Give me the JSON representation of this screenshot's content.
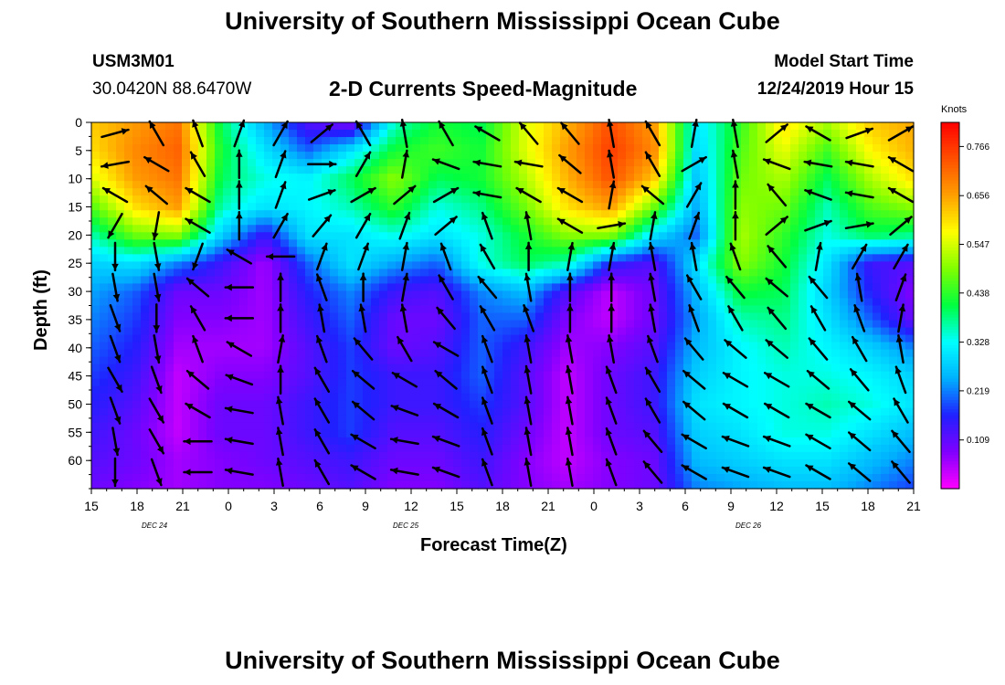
{
  "header": {
    "title": "University of Southern Mississippi Ocean Cube",
    "station_id": "USM3M01",
    "location": "30.0420N 88.6470W",
    "plot_title": "2-D Currents Speed-Magnitude",
    "model_start_label": "Model Start Time",
    "model_start_value": "12/24/2019 Hour 15"
  },
  "footer": {
    "title": "University of Southern Mississippi Ocean Cube"
  },
  "chart_data": {
    "type": "heatmap",
    "title": "2-D Currents Speed-Magnitude",
    "xlabel": "Forecast Time(Z)",
    "ylabel": "Depth (ft)",
    "x_ticks": [
      "15",
      "18",
      "21",
      "0",
      "3",
      "6",
      "9",
      "12",
      "15",
      "18",
      "21",
      "0",
      "3",
      "6",
      "9",
      "12",
      "15",
      "18",
      "21"
    ],
    "date_labels": [
      "DEC 24",
      "DEC 25",
      "DEC 26"
    ],
    "y_ticks": [
      "0",
      "5",
      "10",
      "15",
      "20",
      "25",
      "30",
      "35",
      "40",
      "45",
      "50",
      "55",
      "60"
    ],
    "ylim": [
      0,
      65
    ],
    "y_inverted": true,
    "colorbar": {
      "unit": "Knots",
      "ticks": [
        "0.766",
        "0.656",
        "0.547",
        "0.438",
        "0.328",
        "0.219",
        "0.109"
      ],
      "min": 0.0,
      "max": 0.82,
      "colors": [
        "#ff00ff",
        "#8000ff",
        "#2020ff",
        "#00b0ff",
        "#00ffff",
        "#00ff40",
        "#80ff00",
        "#ffff00",
        "#ffa000",
        "#ff5000",
        "#ff0000"
      ]
    },
    "speed_grid_knots": [
      [
        0.62,
        0.66,
        0.7,
        0.4,
        0.25,
        0.12,
        0.08,
        0.35,
        0.42,
        0.4,
        0.55,
        0.64,
        0.74,
        0.66,
        0.3,
        0.44,
        0.6,
        0.52,
        0.62,
        0.65
      ],
      [
        0.6,
        0.68,
        0.72,
        0.42,
        0.3,
        0.2,
        0.3,
        0.42,
        0.45,
        0.42,
        0.55,
        0.66,
        0.76,
        0.68,
        0.28,
        0.46,
        0.56,
        0.45,
        0.58,
        0.64
      ],
      [
        0.55,
        0.66,
        0.7,
        0.4,
        0.34,
        0.32,
        0.4,
        0.5,
        0.4,
        0.42,
        0.52,
        0.64,
        0.74,
        0.62,
        0.26,
        0.48,
        0.52,
        0.4,
        0.52,
        0.6
      ],
      [
        0.46,
        0.6,
        0.66,
        0.36,
        0.3,
        0.32,
        0.36,
        0.44,
        0.34,
        0.38,
        0.48,
        0.6,
        0.66,
        0.48,
        0.24,
        0.5,
        0.48,
        0.36,
        0.46,
        0.5
      ],
      [
        0.36,
        0.48,
        0.5,
        0.28,
        0.14,
        0.3,
        0.3,
        0.34,
        0.3,
        0.34,
        0.42,
        0.5,
        0.5,
        0.3,
        0.2,
        0.52,
        0.44,
        0.34,
        0.4,
        0.38
      ],
      [
        0.28,
        0.3,
        0.22,
        0.14,
        0.06,
        0.2,
        0.3,
        0.24,
        0.2,
        0.34,
        0.4,
        0.36,
        0.16,
        0.12,
        0.3,
        0.5,
        0.42,
        0.3,
        0.14,
        0.12
      ],
      [
        0.24,
        0.2,
        0.1,
        0.1,
        0.06,
        0.16,
        0.22,
        0.14,
        0.12,
        0.22,
        0.26,
        0.12,
        0.04,
        0.1,
        0.26,
        0.42,
        0.4,
        0.28,
        0.16,
        0.08
      ],
      [
        0.22,
        0.18,
        0.08,
        0.08,
        0.06,
        0.14,
        0.2,
        0.1,
        0.1,
        0.2,
        0.2,
        0.08,
        0.04,
        0.1,
        0.24,
        0.36,
        0.38,
        0.3,
        0.2,
        0.1
      ],
      [
        0.2,
        0.16,
        0.06,
        0.06,
        0.06,
        0.12,
        0.18,
        0.1,
        0.12,
        0.2,
        0.14,
        0.06,
        0.08,
        0.12,
        0.26,
        0.32,
        0.36,
        0.32,
        0.28,
        0.22
      ],
      [
        0.18,
        0.14,
        0.04,
        0.08,
        0.08,
        0.12,
        0.18,
        0.14,
        0.14,
        0.2,
        0.12,
        0.04,
        0.1,
        0.14,
        0.28,
        0.32,
        0.34,
        0.34,
        0.32,
        0.28
      ],
      [
        0.16,
        0.12,
        0.04,
        0.1,
        0.1,
        0.14,
        0.18,
        0.14,
        0.14,
        0.18,
        0.12,
        0.04,
        0.1,
        0.14,
        0.3,
        0.32,
        0.34,
        0.36,
        0.34,
        0.3
      ],
      [
        0.14,
        0.1,
        0.04,
        0.1,
        0.1,
        0.14,
        0.18,
        0.12,
        0.12,
        0.16,
        0.1,
        0.04,
        0.1,
        0.12,
        0.28,
        0.3,
        0.34,
        0.34,
        0.3,
        0.26
      ],
      [
        0.12,
        0.1,
        0.06,
        0.08,
        0.1,
        0.12,
        0.14,
        0.1,
        0.1,
        0.14,
        0.08,
        0.04,
        0.08,
        0.1,
        0.26,
        0.28,
        0.3,
        0.3,
        0.26,
        0.22
      ],
      [
        0.1,
        0.08,
        0.06,
        0.08,
        0.08,
        0.1,
        0.12,
        0.08,
        0.08,
        0.12,
        0.08,
        0.06,
        0.08,
        0.1,
        0.22,
        0.24,
        0.26,
        0.26,
        0.22,
        0.18
      ]
    ],
    "vector_angles_deg": [
      [
        -15,
        -120,
        -110,
        -70,
        -60,
        -40,
        -120,
        -100,
        -120,
        -150,
        -130,
        -130,
        -100,
        -120,
        -80,
        -100,
        -40,
        -150,
        -20,
        -30
      ],
      [
        170,
        -150,
        -120,
        -90,
        -70,
        0,
        -60,
        -80,
        -160,
        -170,
        -170,
        -140,
        -100,
        -120,
        -30,
        -100,
        -160,
        -170,
        -170,
        -150
      ],
      [
        -150,
        -140,
        -150,
        -90,
        -70,
        -20,
        -30,
        -40,
        -30,
        -170,
        -150,
        -150,
        -80,
        -140,
        -60,
        -90,
        -130,
        -160,
        -170,
        -150
      ],
      [
        120,
        100,
        -150,
        -90,
        -60,
        -50,
        -60,
        -70,
        -40,
        -110,
        -100,
        -150,
        -10,
        -80,
        -70,
        -90,
        -40,
        -20,
        -10,
        -40
      ],
      [
        90,
        80,
        110,
        -150,
        180,
        -70,
        -70,
        -80,
        -110,
        -120,
        -90,
        -80,
        -80,
        -100,
        -100,
        -110,
        -130,
        -80,
        -60,
        -60
      ],
      [
        80,
        80,
        -140,
        180,
        -90,
        -110,
        -90,
        -80,
        -120,
        -130,
        -100,
        -90,
        -90,
        -100,
        -120,
        -130,
        -140,
        -130,
        -100,
        -70
      ],
      [
        70,
        90,
        -120,
        180,
        -90,
        -100,
        -100,
        -100,
        -130,
        -120,
        -110,
        -90,
        -90,
        -100,
        -110,
        -120,
        -130,
        -120,
        -110,
        -80
      ],
      [
        70,
        80,
        -110,
        -150,
        -80,
        -110,
        -130,
        -120,
        -150,
        -110,
        -100,
        -100,
        -100,
        -110,
        -130,
        -140,
        -140,
        -130,
        -120,
        -100
      ],
      [
        60,
        70,
        -140,
        -160,
        -90,
        -120,
        -140,
        -150,
        -140,
        -110,
        -100,
        -100,
        -110,
        -120,
        -140,
        -150,
        -150,
        -140,
        -130,
        -110
      ],
      [
        70,
        60,
        -150,
        -170,
        -100,
        -120,
        -140,
        -160,
        -150,
        -110,
        -100,
        -100,
        -110,
        -120,
        -140,
        -150,
        -150,
        -150,
        -140,
        -120
      ],
      [
        80,
        60,
        180,
        -170,
        -100,
        -120,
        -150,
        -170,
        -160,
        -110,
        -100,
        -100,
        -110,
        -130,
        -150,
        -160,
        -160,
        -150,
        -140,
        -130
      ],
      [
        90,
        70,
        180,
        -170,
        -100,
        -120,
        -150,
        -170,
        -160,
        -110,
        -100,
        -100,
        -110,
        -130,
        -150,
        -160,
        -160,
        -150,
        -140,
        -130
      ]
    ]
  }
}
